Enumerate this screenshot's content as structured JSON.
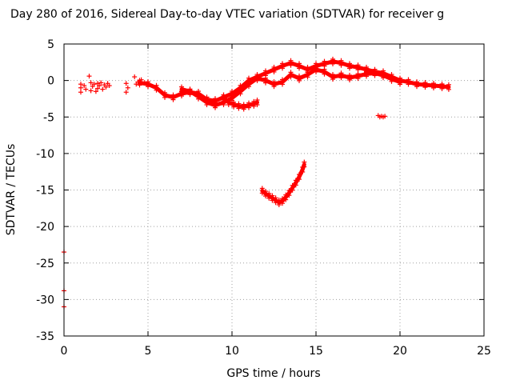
{
  "chart_data": {
    "type": "scatter",
    "title": "Day 280 of 2016, Sidereal Day-to-day VTEC variation (SDTVAR) for receiver g",
    "xlabel": "GPS time / hours",
    "ylabel": "SDTVAR / TECUs",
    "xlim": [
      0,
      25
    ],
    "ylim": [
      -35,
      5
    ],
    "xticks": [
      0,
      5,
      10,
      15,
      20,
      25
    ],
    "yticks": [
      5,
      0,
      -5,
      -10,
      -15,
      -20,
      -25,
      -30,
      -35
    ],
    "grid": true,
    "marker": "plus",
    "color": "#ff0000",
    "series": [
      {
        "x": [
          0.0,
          0.0,
          0.0,
          1.0,
          1.0,
          1.0,
          1.2,
          1.3,
          1.5,
          1.6,
          1.6,
          1.7,
          1.8,
          1.9,
          2.0,
          2.0,
          2.1,
          2.2,
          2.3,
          2.4,
          2.5,
          2.6,
          2.7,
          3.7,
          3.7,
          3.8,
          4.2,
          4.3,
          4.4,
          4.6,
          4.8
        ],
        "y": [
          -23.5,
          -28.8,
          -31.0,
          -0.5,
          -1.0,
          -1.6,
          -0.7,
          -1.2,
          0.6,
          -0.3,
          -1.4,
          -0.8,
          -0.5,
          -1.5,
          -0.4,
          -1.1,
          -0.7,
          -0.3,
          -1.2,
          -0.6,
          -0.9,
          -0.4,
          -0.7,
          -0.4,
          -1.6,
          -1.0,
          0.5,
          -0.5,
          -0.2,
          0.1,
          -0.3
        ]
      },
      {
        "curve": true,
        "x": [
          4.5,
          5.0,
          5.5,
          6.0,
          6.5,
          7.0,
          7.5,
          8.0,
          8.5,
          9.0,
          9.5,
          10.0,
          10.5,
          11.0,
          11.5,
          12.0,
          12.5,
          13.0,
          13.5,
          14.0,
          14.5,
          15.0,
          15.5,
          16.0,
          16.5,
          17.0,
          17.5,
          18.0,
          18.5,
          19.0,
          19.5,
          20.0,
          20.5,
          21.0,
          21.5,
          22.0,
          22.5,
          22.9
        ],
        "y": [
          -0.3,
          -0.5,
          -1.0,
          -2.0,
          -2.3,
          -1.8,
          -1.6,
          -1.8,
          -2.6,
          -2.8,
          -2.3,
          -1.8,
          -1.0,
          0.0,
          0.5,
          1.0,
          1.5,
          2.0,
          2.4,
          2.0,
          1.5,
          2.0,
          2.3,
          2.6,
          2.4,
          2.0,
          1.8,
          1.5,
          1.2,
          1.0,
          0.5,
          0.0,
          -0.2,
          -0.5,
          -0.6,
          -0.7,
          -0.8,
          -0.9
        ]
      },
      {
        "curve": true,
        "x": [
          7.0,
          7.5,
          8.0,
          8.5,
          9.0,
          9.5,
          10.0,
          10.5,
          11.0,
          11.5,
          12.0,
          12.5,
          13.0,
          13.5,
          14.0,
          14.5,
          15.0,
          15.5,
          16.0,
          16.5,
          17.0,
          17.5,
          18.0,
          18.5,
          19.0,
          19.5,
          20.0
        ],
        "y": [
          -1.2,
          -1.5,
          -2.2,
          -3.0,
          -3.4,
          -3.0,
          -2.4,
          -1.5,
          -0.5,
          0.3,
          0.0,
          -0.5,
          -0.2,
          0.8,
          0.3,
          0.8,
          1.5,
          1.2,
          0.5,
          0.7,
          0.4,
          0.6,
          0.9,
          1.0,
          0.7,
          0.2,
          -0.2
        ]
      },
      {
        "curve": true,
        "x": [
          9.5,
          9.8,
          10.1,
          10.4,
          10.7,
          11.0,
          11.3,
          11.5
        ],
        "y": [
          -2.3,
          -3.0,
          -3.3,
          -3.5,
          -3.6,
          -3.4,
          -3.2,
          -3.0
        ]
      },
      {
        "x": [
          18.7,
          18.8,
          18.9,
          19.0,
          19.1
        ],
        "y": [
          -4.8,
          -5.0,
          -4.9,
          -5.0,
          -4.9
        ]
      },
      {
        "curve": true,
        "x": [
          11.8,
          12.0,
          12.2,
          12.4,
          12.6,
          12.8,
          13.0,
          13.2,
          13.4,
          13.6,
          13.8,
          14.0,
          14.2,
          14.3
        ],
        "y": [
          -15.1,
          -15.5,
          -15.8,
          -16.1,
          -16.4,
          -16.7,
          -16.5,
          -16.0,
          -15.4,
          -14.7,
          -14.0,
          -13.2,
          -12.2,
          -11.5
        ]
      }
    ]
  }
}
